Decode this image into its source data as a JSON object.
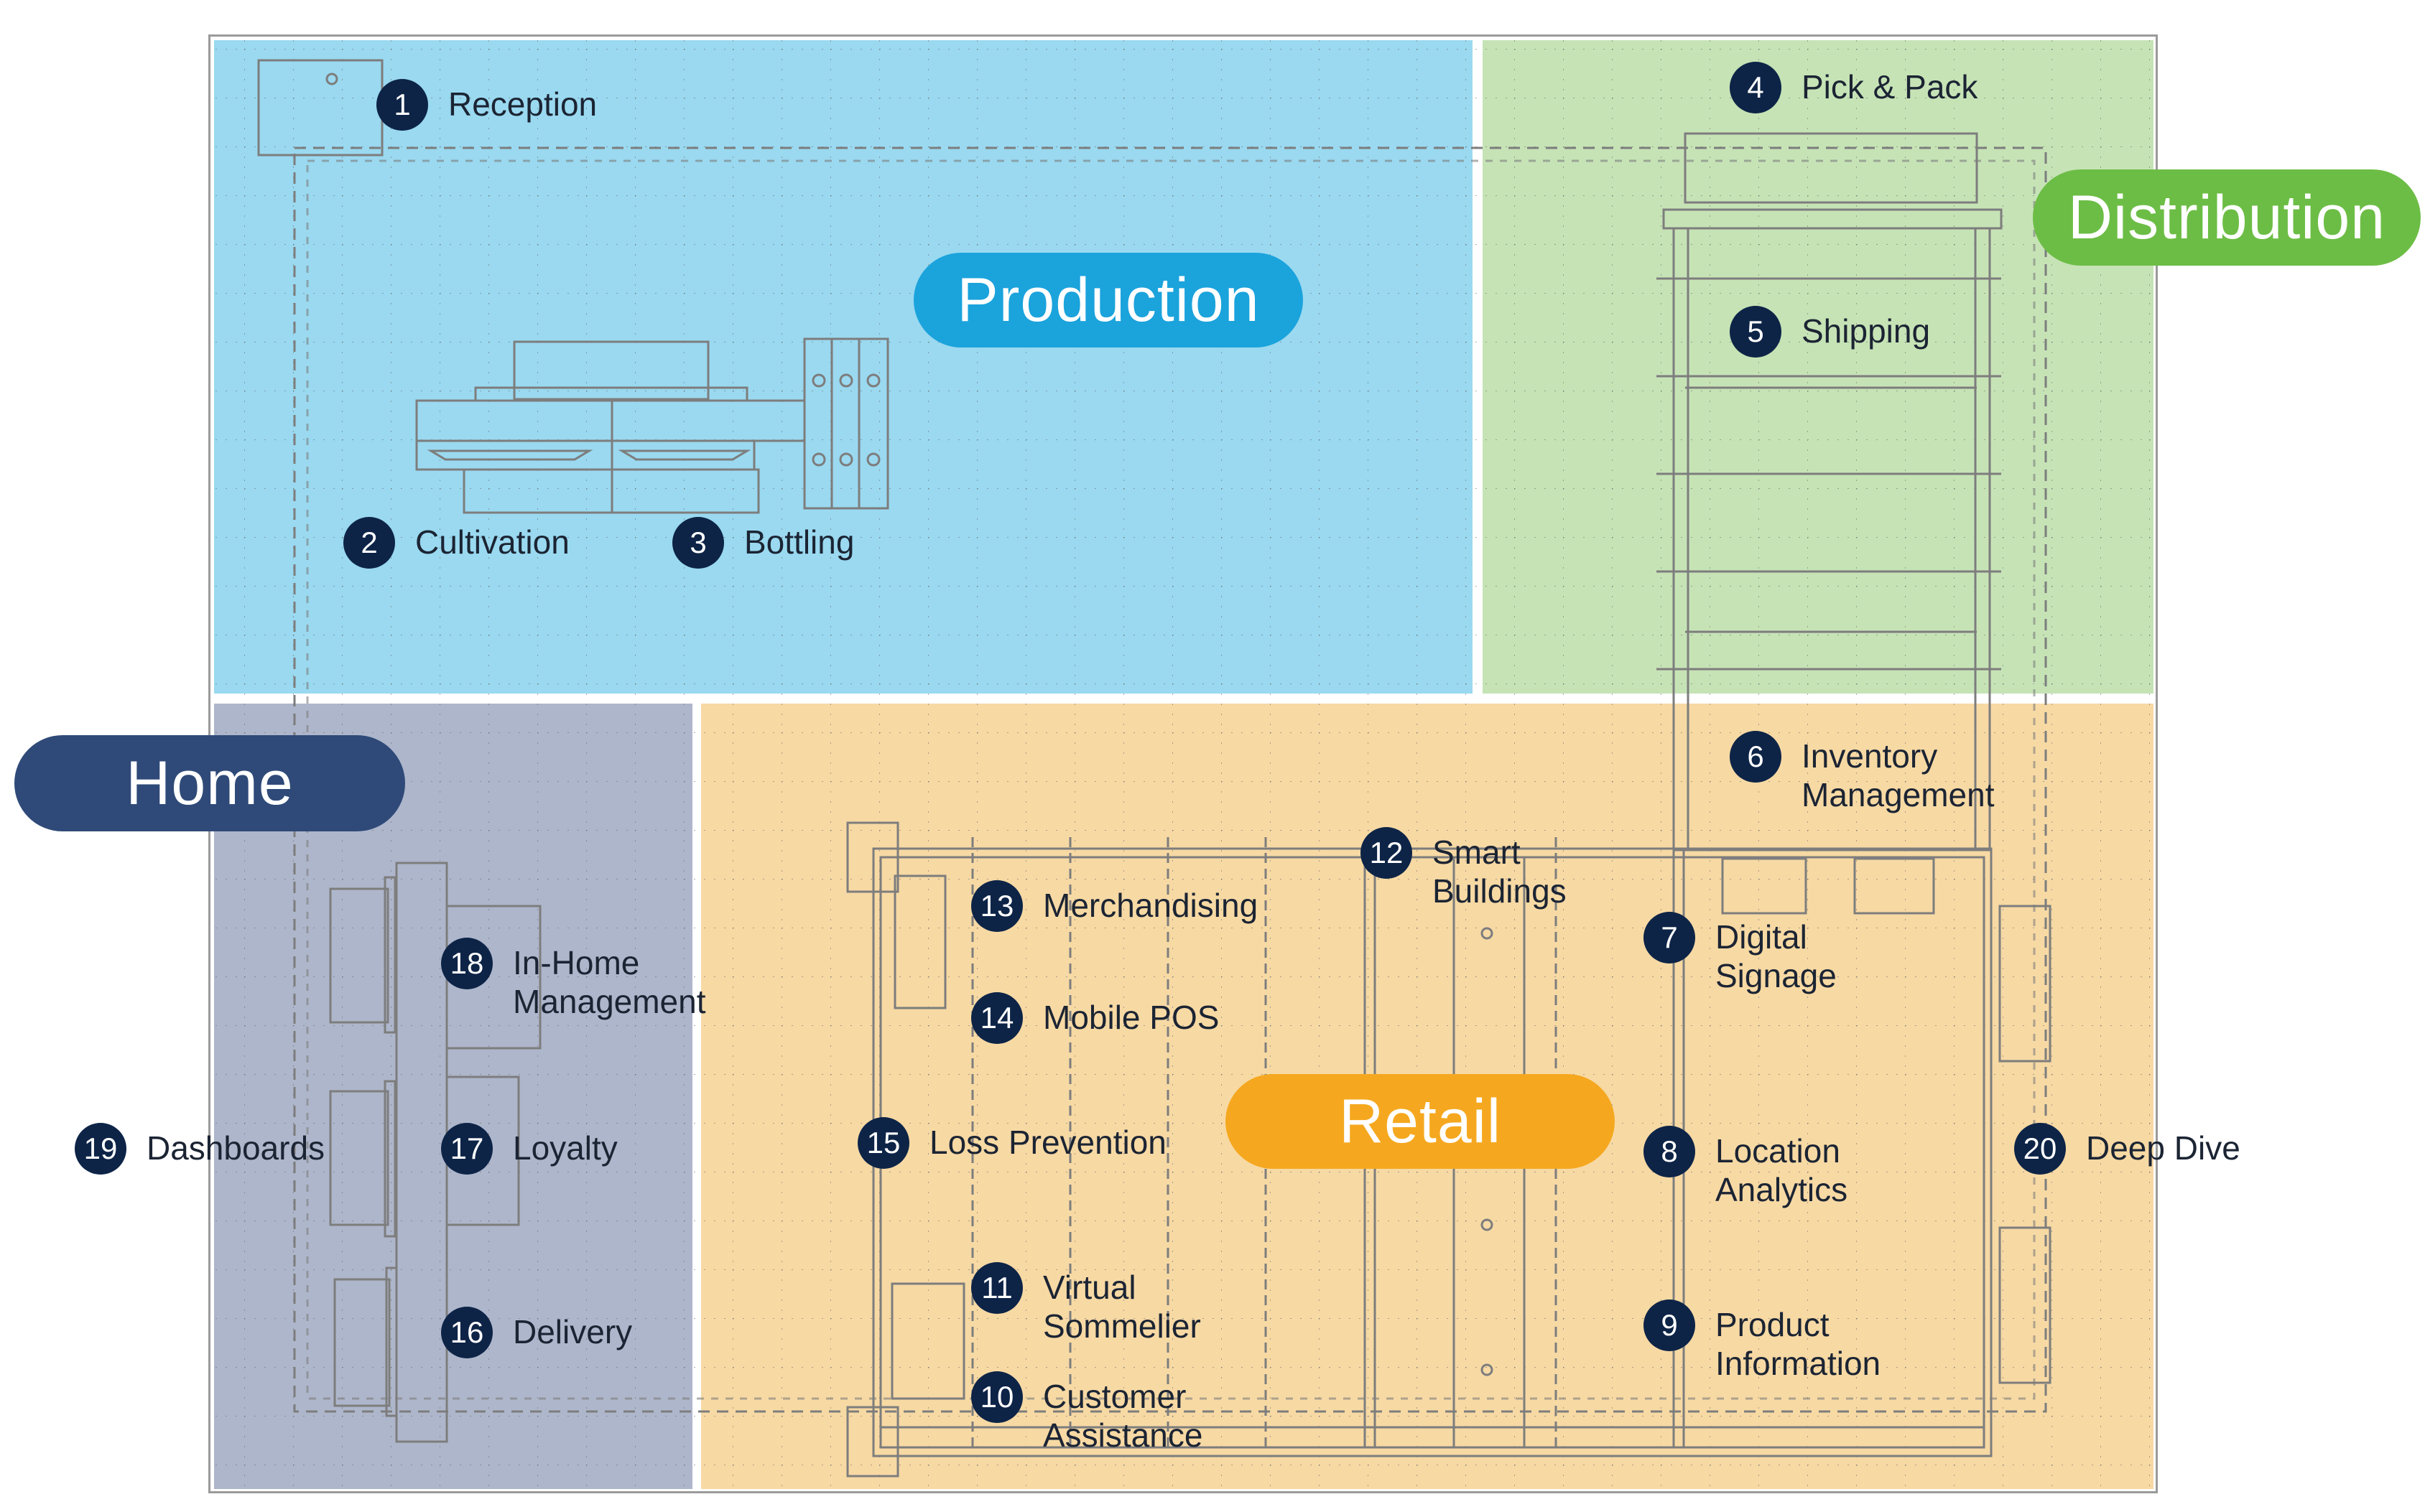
{
  "colors": {
    "production": "#9ad9f0",
    "distribution": "#c6e3b6",
    "home": "#aeb6cb",
    "retail": "#f7d9a4",
    "marker": "#0d2447",
    "production_pill": "#1ba3dc",
    "distribution_pill": "#6cbd45",
    "home_pill": "#2f4a78",
    "retail_pill": "#f5a81f",
    "blueprint_line": "#7d7d7d"
  },
  "zones": {
    "production": "Production",
    "distribution": "Distribution",
    "home": "Home",
    "retail": "Retail"
  },
  "markers": [
    {
      "num": "1",
      "lines": [
        "Reception"
      ]
    },
    {
      "num": "2",
      "lines": [
        "Cultivation"
      ]
    },
    {
      "num": "3",
      "lines": [
        "Bottling"
      ]
    },
    {
      "num": "4",
      "lines": [
        "Pick & Pack"
      ]
    },
    {
      "num": "5",
      "lines": [
        "Shipping"
      ]
    },
    {
      "num": "6",
      "lines": [
        "Inventory",
        "Management"
      ]
    },
    {
      "num": "7",
      "lines": [
        "Digital",
        "Signage"
      ]
    },
    {
      "num": "8",
      "lines": [
        "Location",
        "Analytics"
      ]
    },
    {
      "num": "9",
      "lines": [
        "Product",
        "Information"
      ]
    },
    {
      "num": "10",
      "lines": [
        "Customer",
        "Assistance"
      ]
    },
    {
      "num": "11",
      "lines": [
        "Virtual",
        "Sommelier"
      ]
    },
    {
      "num": "12",
      "lines": [
        "Smart",
        "Buildings"
      ]
    },
    {
      "num": "13",
      "lines": [
        "Merchandising"
      ]
    },
    {
      "num": "14",
      "lines": [
        "Mobile POS"
      ]
    },
    {
      "num": "15",
      "lines": [
        "Loss Prevention"
      ]
    },
    {
      "num": "16",
      "lines": [
        "Delivery"
      ]
    },
    {
      "num": "17",
      "lines": [
        "Loyalty"
      ]
    },
    {
      "num": "18",
      "lines": [
        "In-Home",
        "Management"
      ]
    },
    {
      "num": "19",
      "lines": [
        "Dashboards"
      ]
    },
    {
      "num": "20",
      "lines": [
        "Deep Dive"
      ]
    }
  ]
}
